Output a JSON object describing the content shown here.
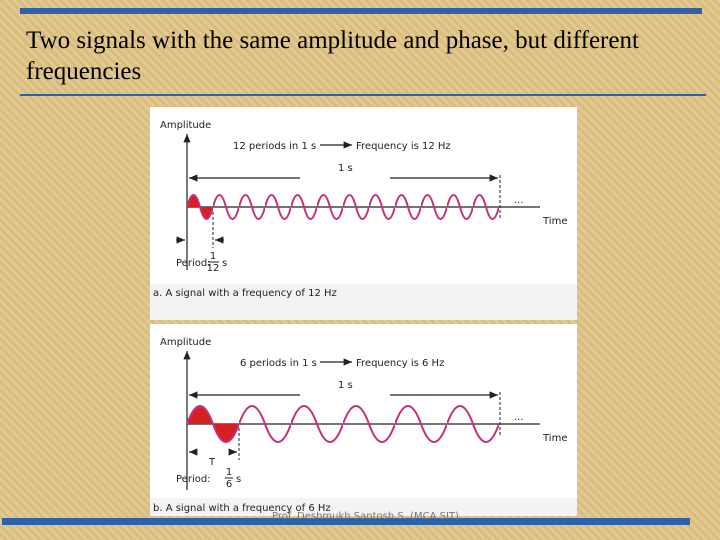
{
  "title": "Two signals with the same amplitude and phase, but different frequencies",
  "panels": [
    {
      "amplitude": "Amplitude",
      "periods": "12 periods in 1 s",
      "frequency": "Frequency is 12 Hz",
      "one_second": "1 s",
      "dots": "...",
      "time": "Time",
      "period_label": "Period:",
      "period_num": "1",
      "period_den": "12",
      "period_unit": "s",
      "caption": "a. A signal with a frequency of 12 Hz"
    },
    {
      "amplitude": "Amplitude",
      "periods": "6 periods in 1 s",
      "frequency": "Frequency is 6 Hz",
      "one_second": "1 s",
      "dots": "...",
      "time": "Time",
      "t_label": "T",
      "period_label": "Period:",
      "period_num": "1",
      "period_den": "6",
      "period_unit": "s",
      "caption": "b. A signal with a frequency of 6 Hz"
    }
  ],
  "footer": "Prof. Deshmukh Santosh S. (MCA SIT)"
}
